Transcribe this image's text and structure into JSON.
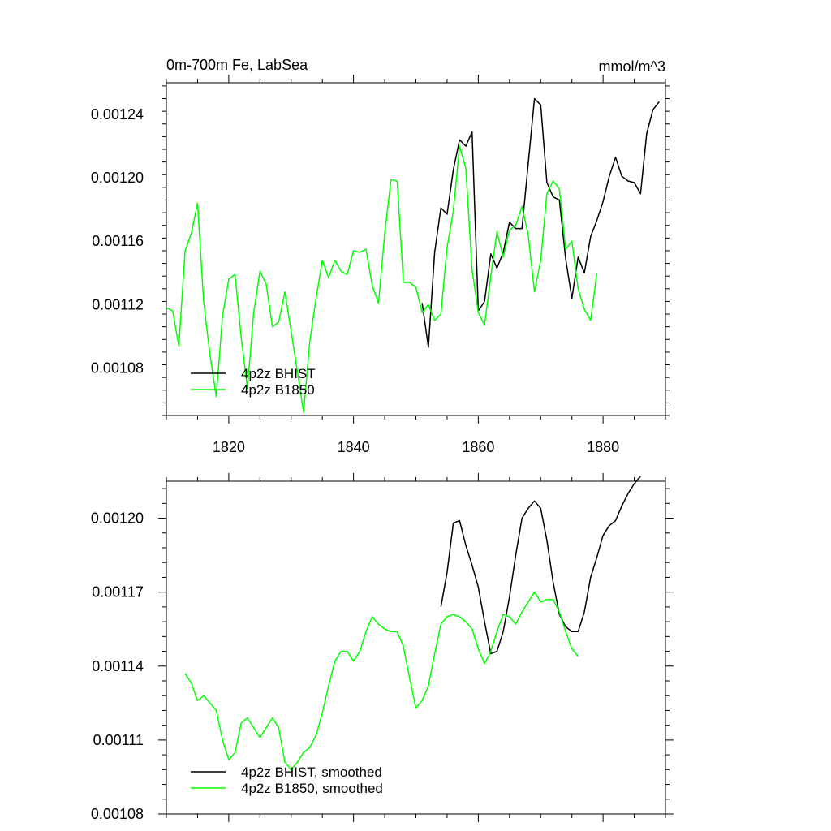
{
  "chart_data": [
    {
      "type": "line",
      "title_left": "0m-700m Fe, LabSea",
      "title_right": "mmol/m^3",
      "xlabel": "",
      "ylabel": "",
      "xlim": [
        1810,
        1890
      ],
      "ylim": [
        0.00105,
        0.00126
      ],
      "x_ticks": [
        1820,
        1840,
        1860,
        1880
      ],
      "x_tick_labels": [
        "1820",
        "1840",
        "1860",
        "1880"
      ],
      "y_ticks": [
        0.00108,
        0.00112,
        0.00116,
        0.0012,
        0.00124
      ],
      "y_tick_labels": [
        "0.00108",
        "0.00112",
        "0.00116",
        "0.00120",
        "0.00124"
      ],
      "legend_position": "bottom-left",
      "series": [
        {
          "name": "4p2z BHIST",
          "color": "#000000",
          "x": [
            1851,
            1852,
            1853,
            1854,
            1855,
            1856,
            1857,
            1858,
            1859,
            1860,
            1861,
            1862,
            1863,
            1864,
            1865,
            1866,
            1867,
            1868,
            1869,
            1870,
            1871,
            1872,
            1873,
            1874,
            1875,
            1876,
            1877,
            1878,
            1879,
            1880,
            1881,
            1882,
            1883,
            1884,
            1885,
            1886,
            1887,
            1888,
            1889
          ],
          "values": [
            0.001121,
            0.001093,
            0.001153,
            0.001181,
            0.001177,
            0.001205,
            0.001224,
            0.00122,
            0.001229,
            0.001116,
            0.001122,
            0.001152,
            0.001143,
            0.001153,
            0.001172,
            0.001168,
            0.001168,
            0.001209,
            0.00125,
            0.001246,
            0.001197,
            0.001188,
            0.001186,
            0.001149,
            0.001124,
            0.00115,
            0.00114,
            0.001163,
            0.001173,
            0.001185,
            0.001201,
            0.001213,
            0.001201,
            0.001198,
            0.001197,
            0.00119,
            0.001228,
            0.001243,
            0.001248
          ]
        },
        {
          "name": "4p2z B1850",
          "color": "#00ff00",
          "x": [
            1810,
            1811,
            1812,
            1813,
            1814,
            1815,
            1816,
            1817,
            1818,
            1819,
            1820,
            1821,
            1822,
            1823,
            1824,
            1825,
            1826,
            1827,
            1828,
            1829,
            1830,
            1831,
            1832,
            1833,
            1834,
            1835,
            1836,
            1837,
            1838,
            1839,
            1840,
            1841,
            1842,
            1843,
            1844,
            1845,
            1846,
            1847,
            1848,
            1849,
            1850,
            1851,
            1852,
            1853,
            1854,
            1855,
            1856,
            1857,
            1858,
            1859,
            1860,
            1861,
            1862,
            1863,
            1864,
            1865,
            1866,
            1867,
            1868,
            1869,
            1870,
            1871,
            1872,
            1873,
            1874,
            1875,
            1876,
            1877,
            1878,
            1879
          ],
          "values": [
            0.001118,
            0.001116,
            0.001094,
            0.001154,
            0.001165,
            0.001184,
            0.001121,
            0.001088,
            0.001062,
            0.001113,
            0.001136,
            0.001139,
            0.001099,
            0.001067,
            0.001115,
            0.001141,
            0.001133,
            0.001106,
            0.001109,
            0.001128,
            0.001103,
            0.001078,
            0.001052,
            0.001097,
            0.001124,
            0.001148,
            0.001137,
            0.001148,
            0.001141,
            0.001139,
            0.001154,
            0.001153,
            0.001155,
            0.001132,
            0.001121,
            0.001165,
            0.001199,
            0.001198,
            0.001134,
            0.001134,
            0.001131,
            0.001115,
            0.00112,
            0.00111,
            0.001114,
            0.001156,
            0.001179,
            0.00122,
            0.001206,
            0.001142,
            0.001115,
            0.001107,
            0.001138,
            0.001166,
            0.00115,
            0.001167,
            0.00117,
            0.001182,
            0.001164,
            0.001128,
            0.001148,
            0.00119,
            0.001198,
            0.001193,
            0.001155,
            0.00116,
            0.00113,
            0.001117,
            0.00111,
            0.00114
          ]
        }
      ]
    },
    {
      "type": "line",
      "title_left": "",
      "title_right": "",
      "xlabel": "",
      "ylabel": "",
      "xlim": [
        1810,
        1890
      ],
      "ylim": [
        0.00108,
        0.001215
      ],
      "x_ticks": [
        1820,
        1840,
        1860,
        1880
      ],
      "x_tick_labels": [],
      "y_ticks": [
        0.00108,
        0.00111,
        0.00114,
        0.00117,
        0.0012
      ],
      "y_tick_labels": [
        "0.00108",
        "0.00111",
        "0.00114",
        "0.00117",
        "0.00120"
      ],
      "legend_position": "bottom-left",
      "series": [
        {
          "name": "4p2z BHIST, smoothed",
          "color": "#000000",
          "x": [
            1854,
            1855,
            1856,
            1857,
            1858,
            1859,
            1860,
            1861,
            1862,
            1863,
            1864,
            1865,
            1866,
            1867,
            1868,
            1869,
            1870,
            1871,
            1872,
            1873,
            1874,
            1875,
            1876,
            1877,
            1878,
            1879,
            1880,
            1881,
            1882,
            1883,
            1884,
            1885,
            1886
          ],
          "values": [
            0.001164,
            0.001178,
            0.001198,
            0.001199,
            0.001189,
            0.001181,
            0.001172,
            0.001158,
            0.001145,
            0.001146,
            0.001154,
            0.001168,
            0.001185,
            0.0012,
            0.001204,
            0.001207,
            0.001204,
            0.001191,
            0.001174,
            0.001161,
            0.001156,
            0.001154,
            0.001154,
            0.001162,
            0.001176,
            0.001184,
            0.001193,
            0.001197,
            0.001199,
            0.001205,
            0.00121,
            0.001214,
            0.001217
          ]
        },
        {
          "name": "4p2z B1850, smoothed",
          "color": "#00ff00",
          "x": [
            1813,
            1814,
            1815,
            1816,
            1817,
            1818,
            1819,
            1820,
            1821,
            1822,
            1823,
            1824,
            1825,
            1826,
            1827,
            1828,
            1829,
            1830,
            1831,
            1832,
            1833,
            1834,
            1835,
            1836,
            1837,
            1838,
            1839,
            1840,
            1841,
            1842,
            1843,
            1844,
            1845,
            1846,
            1847,
            1848,
            1849,
            1850,
            1851,
            1852,
            1853,
            1854,
            1855,
            1856,
            1857,
            1858,
            1859,
            1860,
            1861,
            1862,
            1863,
            1864,
            1865,
            1866,
            1867,
            1868,
            1869,
            1870,
            1871,
            1872,
            1873,
            1874,
            1875,
            1876
          ],
          "values": [
            0.001137,
            0.001133,
            0.001126,
            0.001128,
            0.001125,
            0.001122,
            0.00111,
            0.001102,
            0.001105,
            0.001117,
            0.001119,
            0.001115,
            0.001111,
            0.001115,
            0.001119,
            0.001115,
            0.001101,
            0.001098,
            0.001101,
            0.001105,
            0.001107,
            0.001112,
            0.001121,
            0.001132,
            0.001142,
            0.001146,
            0.001146,
            0.001142,
            0.001146,
            0.001154,
            0.00116,
            0.001157,
            0.001155,
            0.001154,
            0.001154,
            0.001148,
            0.001135,
            0.001123,
            0.001126,
            0.001132,
            0.001145,
            0.001157,
            0.00116,
            0.001161,
            0.00116,
            0.001158,
            0.001155,
            0.001147,
            0.001141,
            0.001146,
            0.001154,
            0.001161,
            0.00116,
            0.001157,
            0.001162,
            0.001166,
            0.00117,
            0.001166,
            0.001167,
            0.001167,
            0.001162,
            0.001154,
            0.001147,
            0.001144
          ]
        }
      ]
    }
  ]
}
